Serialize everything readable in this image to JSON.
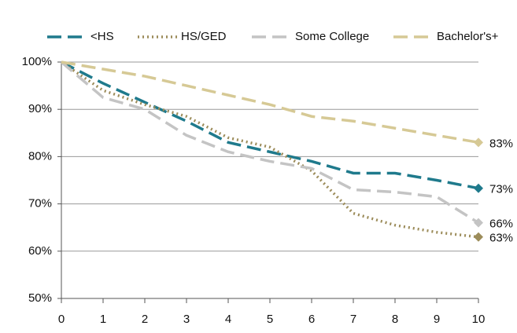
{
  "chart_data": {
    "type": "line",
    "x": [
      0,
      1,
      2,
      3,
      4,
      5,
      6,
      7,
      8,
      9,
      10
    ],
    "xlim": [
      0,
      10
    ],
    "xticks": [
      0,
      1,
      2,
      3,
      4,
      5,
      6,
      7,
      8,
      9,
      10
    ],
    "ylim": [
      50,
      100
    ],
    "yticks": [
      {
        "value": 50,
        "label": "50%"
      },
      {
        "value": 60,
        "label": "60%"
      },
      {
        "value": 70,
        "label": "70%"
      },
      {
        "value": 80,
        "label": "80%"
      },
      {
        "value": 90,
        "label": "90%"
      },
      {
        "value": 100,
        "label": "100%"
      }
    ],
    "grid": true,
    "series": [
      {
        "name": "<HS",
        "color": "#1f7a8c",
        "dash": "18 8",
        "values": [
          100,
          95.5,
          91.5,
          87.5,
          83,
          81,
          79,
          76.5,
          76.5,
          75,
          73.3
        ],
        "value_labels": [
          null,
          null,
          null,
          null,
          null,
          null,
          null,
          null,
          null,
          null,
          "73%"
        ]
      },
      {
        "name": "HS/GED",
        "color": "#9c8c5a",
        "dash": "2 4",
        "values": [
          100,
          94,
          91,
          88.5,
          84,
          82,
          77,
          68,
          65.5,
          64,
          63
        ],
        "value_labels": [
          null,
          null,
          null,
          null,
          null,
          null,
          null,
          null,
          null,
          null,
          "63%"
        ]
      },
      {
        "name": "Some College",
        "color": "#c4c4c4",
        "dash": "18 8",
        "values": [
          100,
          92.5,
          90,
          84.5,
          81,
          79,
          77.5,
          73,
          72.5,
          71.5,
          66
        ],
        "value_labels": [
          null,
          null,
          null,
          null,
          null,
          null,
          null,
          null,
          null,
          null,
          "66%"
        ]
      },
      {
        "name": "Bachelor's+",
        "color": "#d6c995",
        "dash": "18 8",
        "values": [
          100,
          98.5,
          97,
          95,
          93,
          91,
          88.5,
          87.5,
          86,
          84.5,
          83
        ],
        "value_labels": [
          null,
          null,
          null,
          null,
          null,
          null,
          null,
          null,
          null,
          null,
          "83%"
        ]
      }
    ]
  }
}
